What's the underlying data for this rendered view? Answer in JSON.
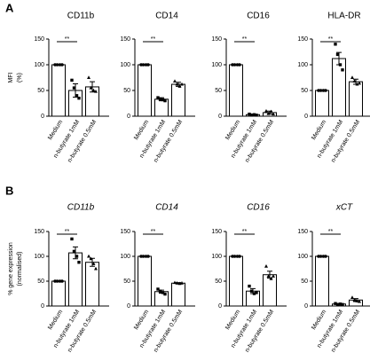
{
  "chart_data": [
    {
      "type": "bar",
      "panel_label": "A",
      "ylabel": [
        "MFI",
        "(%)"
      ],
      "title": "CD11b",
      "title_italic": false,
      "categories": [
        "Medium",
        "n-butyrate 1mM",
        "n-butyrate 0.5mM"
      ],
      "values": [
        100,
        50,
        57
      ],
      "errors": [
        0,
        13,
        10
      ],
      "points": [
        [
          100,
          100,
          100,
          100
        ],
        [
          70,
          55,
          40,
          35
        ],
        [
          75,
          55,
          50,
          48
        ]
      ],
      "markers": [
        "circle",
        "square",
        "triangle"
      ],
      "annotation": "**",
      "color": "#ffffff",
      "ylim": [
        0,
        150
      ],
      "yticks": [
        0,
        50,
        100,
        150
      ]
    },
    {
      "type": "bar",
      "title": "CD14",
      "title_italic": false,
      "categories": [
        "Medium",
        "n-butyrate 1mM",
        "n-butyrate 0.5mM"
      ],
      "values": [
        100,
        33,
        62
      ],
      "errors": [
        0,
        3,
        4
      ],
      "points": [
        [
          100,
          100,
          100,
          100
        ],
        [
          36,
          33,
          32,
          30
        ],
        [
          68,
          62,
          58,
          62
        ]
      ],
      "markers": [
        "circle",
        "square",
        "triangle"
      ],
      "annotation": "**",
      "color": "#ffffff",
      "ylim": [
        0,
        150
      ],
      "yticks": [
        0,
        50,
        100,
        150
      ]
    },
    {
      "type": "bar",
      "title": "CD16",
      "title_italic": false,
      "categories": [
        "Medium",
        "n-butyrate 1mM",
        "n-butyrate 0.5mM"
      ],
      "values": [
        100,
        3,
        7
      ],
      "errors": [
        0,
        1,
        3
      ],
      "points": [
        [
          100,
          100,
          100,
          100
        ],
        [
          4,
          2,
          3,
          2
        ],
        [
          10,
          5,
          9,
          4
        ]
      ],
      "markers": [
        "circle",
        "square",
        "triangle"
      ],
      "annotation": "**",
      "color": "#ffffff",
      "ylim": [
        0,
        150
      ],
      "yticks": [
        0,
        50,
        100,
        150
      ]
    },
    {
      "type": "bar",
      "title": "HLA-DR",
      "title_italic": false,
      "categories": [
        "Medium",
        "n-butyrate 1mM",
        "n-butyrate 0.5mM"
      ],
      "values": [
        50,
        112,
        67
      ],
      "errors": [
        1,
        12,
        5
      ],
      "points": [
        [
          50,
          50,
          50,
          50
        ],
        [
          140,
          120,
          100,
          90
        ],
        [
          75,
          68,
          62,
          64
        ]
      ],
      "markers": [
        "circle",
        "square",
        "triangle"
      ],
      "annotation": "**",
      "color": "#ffffff",
      "ylim": [
        0,
        150
      ],
      "yticks": [
        0,
        50,
        100,
        150
      ]
    },
    {
      "type": "bar",
      "panel_label": "B",
      "ylabel": [
        "% gene expression",
        "(normalised)"
      ],
      "title": "CD11b",
      "title_italic": true,
      "categories": [
        "Medium",
        "n-butyrate 1mM",
        "n-butyrate 0.5mM"
      ],
      "values": [
        50,
        107,
        88
      ],
      "errors": [
        0,
        12,
        8
      ],
      "points": [
        [
          50,
          50,
          50,
          50
        ],
        [
          135,
          110,
          100,
          88
        ],
        [
          100,
          95,
          85,
          75
        ]
      ],
      "markers": [
        "circle",
        "square",
        "triangle"
      ],
      "annotation": "**",
      "color": "#ffffff",
      "ylim": [
        0,
        150
      ],
      "yticks": [
        0,
        50,
        100,
        150
      ]
    },
    {
      "type": "bar",
      "title": "CD14",
      "title_italic": true,
      "categories": [
        "Medium",
        "n-butyrate 1mM",
        "n-butyrate 0.5mM"
      ],
      "values": [
        100,
        29,
        46
      ],
      "errors": [
        0,
        3,
        1
      ],
      "points": [
        [
          100,
          100,
          100,
          100
        ],
        [
          34,
          30,
          27,
          24
        ],
        [
          47,
          46,
          45,
          46
        ]
      ],
      "markers": [
        "circle",
        "square",
        "triangle"
      ],
      "annotation": "**",
      "color": "#ffffff",
      "ylim": [
        0,
        150
      ],
      "yticks": [
        0,
        50,
        100,
        150
      ]
    },
    {
      "type": "bar",
      "title": "CD16",
      "title_italic": true,
      "categories": [
        "Medium",
        "n-butyrate 1mM",
        "n-butyrate 0.5mM"
      ],
      "values": [
        100,
        30,
        63
      ],
      "errors": [
        0,
        5,
        7
      ],
      "points": [
        [
          100,
          100,
          100,
          100
        ],
        [
          40,
          30,
          25,
          27
        ],
        [
          80,
          60,
          55,
          60
        ]
      ],
      "markers": [
        "circle",
        "square",
        "triangle"
      ],
      "annotation": "**",
      "color": "#ffffff",
      "ylim": [
        0,
        150
      ],
      "yticks": [
        0,
        50,
        100,
        150
      ]
    },
    {
      "type": "bar",
      "title": "xCT",
      "title_italic": true,
      "categories": [
        "Medium",
        "n-butyrate 1mM",
        "n-butyrate 0.5mM"
      ],
      "values": [
        100,
        4,
        12
      ],
      "errors": [
        0,
        1,
        3
      ],
      "points": [
        [
          100,
          100,
          100,
          100
        ],
        [
          5,
          3,
          4,
          3
        ],
        [
          17,
          12,
          10,
          9
        ]
      ],
      "markers": [
        "circle",
        "square",
        "triangle"
      ],
      "annotation": "**",
      "color": "#ffffff",
      "ylim": [
        0,
        150
      ],
      "yticks": [
        0,
        50,
        100,
        150
      ]
    }
  ]
}
